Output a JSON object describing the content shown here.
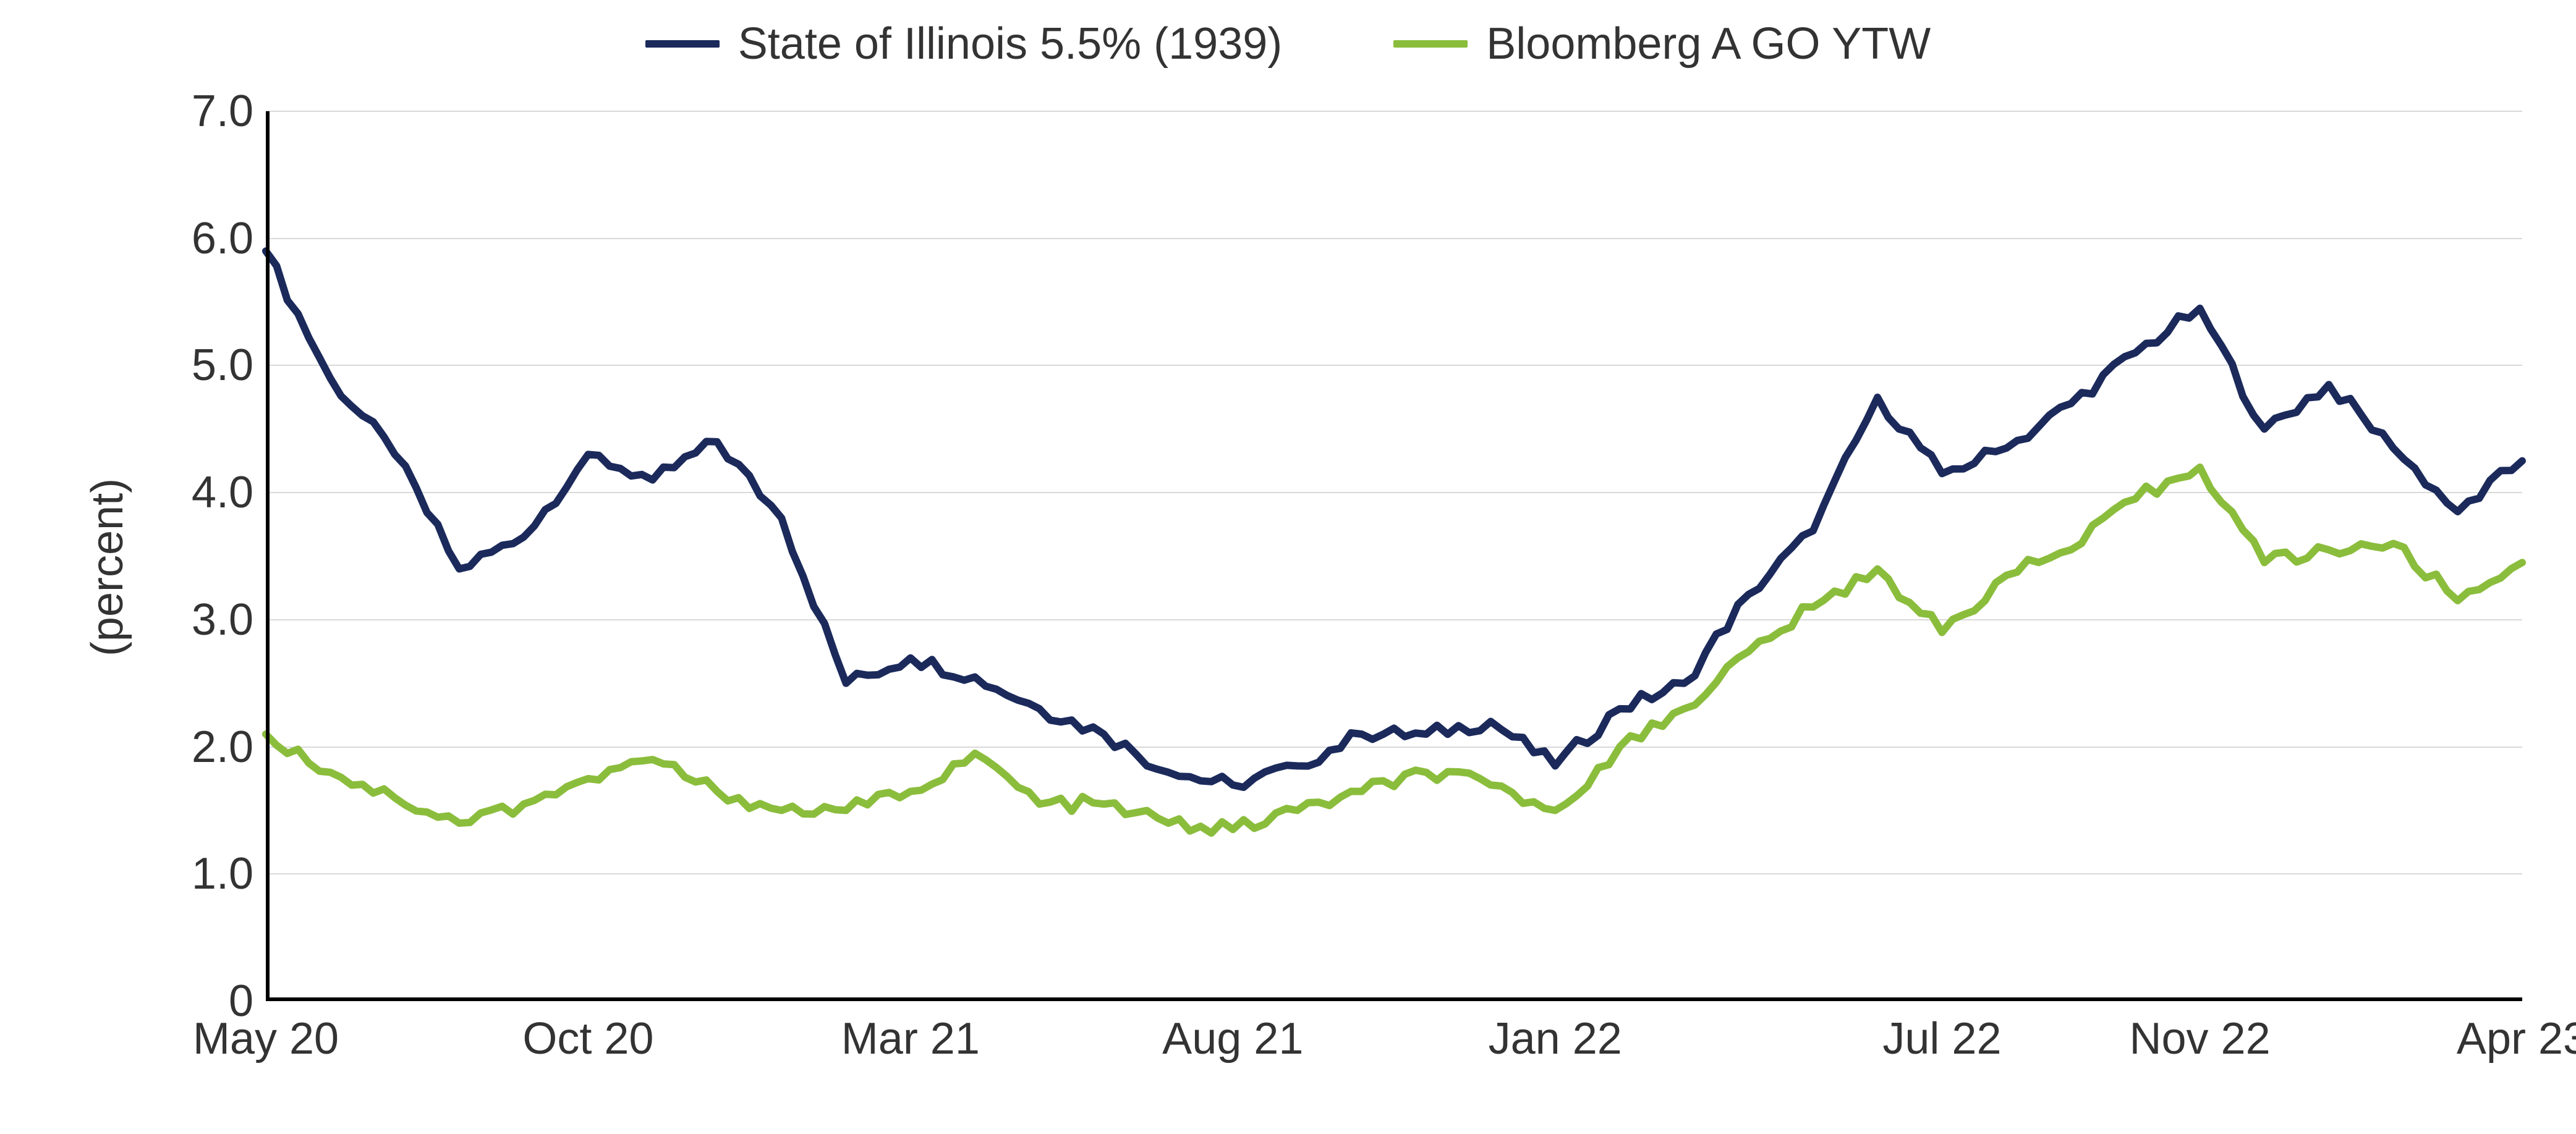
{
  "chart": {
    "type": "line",
    "background_color": "#ffffff",
    "grid_color": "#d9d9d9",
    "axis_color": "#000000",
    "text_color": "#333333",
    "ylabel": "(percent)",
    "label_fontsize": 72,
    "tick_fontsize": 72,
    "legend_fontsize": 72,
    "ylim": [
      0,
      7.0
    ],
    "ytick_step": 1.0,
    "yticks": [
      0,
      1.0,
      2.0,
      3.0,
      4.0,
      5.0,
      6.0,
      7.0
    ],
    "ytick_labels": [
      "0",
      "1.0",
      "2.0",
      "3.0",
      "4.0",
      "5.0",
      "6.0",
      "7.0"
    ],
    "xticks_index": [
      0,
      5,
      10,
      15,
      20,
      26,
      30,
      35
    ],
    "xtick_labels": [
      "May 20",
      "Oct 20",
      "Mar 21",
      "Aug 21",
      "Jan 22",
      "Jul 22",
      "Nov 22",
      "Apr 23"
    ],
    "x_range": [
      0,
      35
    ],
    "line_width": 12,
    "series": [
      {
        "name": "State of Illinois 5.5% (1939)",
        "color": "#1b2a5b",
        "values": [
          5.9,
          4.9,
          4.3,
          3.4,
          3.65,
          4.3,
          4.1,
          4.4,
          3.8,
          2.5,
          2.7,
          2.55,
          2.3,
          2.1,
          1.8,
          1.7,
          1.85,
          2.1,
          2.1,
          2.2,
          1.85,
          2.3,
          2.5,
          3.2,
          3.7,
          4.75,
          4.15,
          4.35,
          4.7,
          5.1,
          5.45,
          4.5,
          4.85,
          4.35,
          3.85,
          4.25
        ]
      },
      {
        "name": "Bloomberg A GO YTW",
        "color": "#8bbd3c",
        "values": [
          2.1,
          1.8,
          1.6,
          1.4,
          1.55,
          1.75,
          1.9,
          1.65,
          1.5,
          1.5,
          1.65,
          1.95,
          1.55,
          1.55,
          1.4,
          1.35,
          1.5,
          1.65,
          1.8,
          1.7,
          1.5,
          2.0,
          2.3,
          2.75,
          3.1,
          3.4,
          2.9,
          3.35,
          3.55,
          3.95,
          4.2,
          3.45,
          3.55,
          3.6,
          3.15,
          3.45
        ]
      }
    ]
  }
}
